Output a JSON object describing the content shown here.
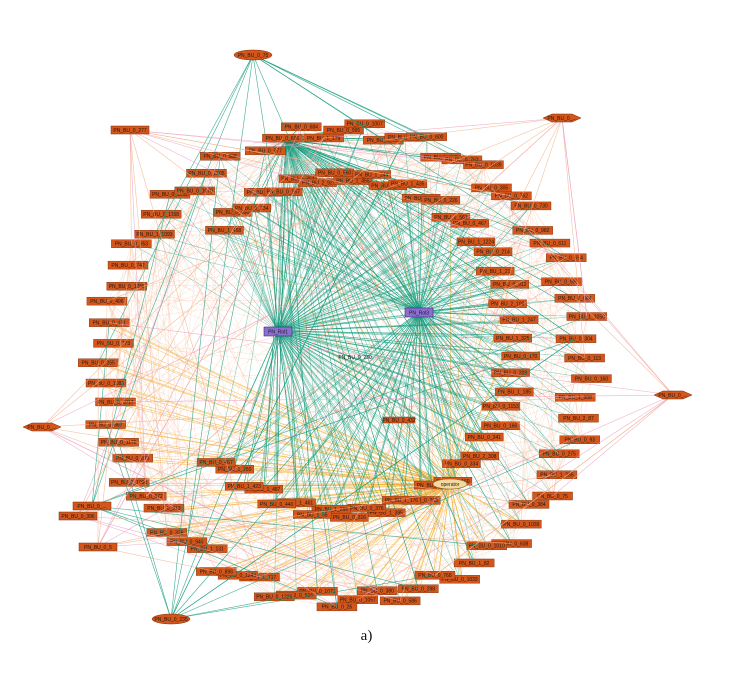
{
  "caption": "a)",
  "colors": {
    "node_fill": "#d4561a",
    "node_stroke": "#7a2d08",
    "hub_fill": "#8a6fd0",
    "edge_green": "#0f9a7a",
    "edge_orange": "#f2a91a",
    "edge_salmon": "#f3b08a",
    "edge_pink": "#ee9fc0"
  },
  "hubs": [
    {
      "label": "PN_Rol1",
      "color": "#8a6fd0"
    },
    {
      "label": "PN_Rol3",
      "color": "#8a6fd0"
    },
    {
      "label": "operator",
      "color": "#f3d9a0"
    }
  ],
  "center_labels": [
    "PN_BU_0_230",
    "PN_BU_0_432"
  ],
  "outer_nodes": [
    "PN_BU_0_75",
    "PN_BU_0_277",
    "PN_BU_0_...",
    "PN_BU_0_...",
    "PN_BU_0_...",
    "PN_BU_0_...",
    "PN_BU_0_396",
    "PN_BU_0_5",
    "PN_BU_0_235"
  ],
  "ring_nodes": [
    "PN_BU_0_977",
    "PN_BU_0_696",
    "PN_BU_0_684",
    "PN_BU_1_179",
    "PN_BU_0_995",
    "PN_BU_0_1007",
    "PN_BU_1_400",
    "PN_BU_0_349",
    "PN_BU_0_600",
    "PN_BU_1_430",
    "PN_BU_0_762",
    "PN_BU_0_1039",
    "PN_BU_0_305",
    "PN_BU_0_762",
    "PN_BU_0_730",
    "PN_BU_0_982",
    "PN_BU_0_611",
    "PN_BU_0_654",
    "PN_BU_0_980",
    "PN_BU_0_664",
    "PN_BU_1_1050",
    "PN_BU_0_304",
    "PN_BU_0_113",
    "PN_BU_0_160",
    "PN_BU_1_308",
    "PN_BU_2_87",
    "PN_BU_0_93",
    "PN_BU_0_275",
    "PN_BU_1_235",
    "PN_BU_0_75",
    "PN_BU_0_384",
    "PN_BU_0_1039",
    "PN_BU_0_608",
    "PN_BU_0_1010",
    "PN_BU_1_82",
    "PN_BU_0_1033",
    "PN_BU_0_768",
    "PN_BU_0_298",
    "PN_BU_0_586",
    "PN_BU_0_380",
    "PN_BU_0_1057",
    "PN_BU_0_26",
    "PN_BU_0_1071",
    "PN_BU_0_524",
    "PN_BU_0_1226",
    "PN_BU_1_717",
    "PN_BU_0_1243",
    "PN_BU_0_896",
    "PN_BU_1_131",
    "PN_BU_0_946",
    "PN_BU_0_326",
    "PN_BU_0_313",
    "PN_BU_0_672",
    "PN_BU_0_1090",
    "PN_BU_0_875",
    "PN_BU_0_1176",
    "PN_BU_0_867",
    "PN_BU_0_1017",
    "PN_BU_0_1083",
    "PN_BU_0_265",
    "PN_BU_0_773",
    "PN_BU_0_431",
    "PN_BU_0_496",
    "PN_BU_0_1258",
    "PN_BU_0_742",
    "PN_BU_0_953",
    "PN_BU_1_1093",
    "PN_BU_0_1158",
    "PN_BU_0_1011",
    "PN_BU_0_1070",
    "PN_BU_0_1205",
    "PN_BU_0_588"
  ],
  "inner_nodes": [
    "PN_BU_1_458",
    "PN_BU_0_356",
    "PN_BU_0_234",
    "PN_BU_0_122",
    "PN_BU_0_167",
    "PN_BU_1_364",
    "PN_BU_2_92",
    "PN_BU_0_560",
    "PN_BU_1_455",
    "PN_BU_1_244",
    "PN_BU_1_127",
    "PN_BU_1_435",
    "PN_BU_2_347",
    "PN_BU_0_226",
    "PN_BU_0_561",
    "PN_BU_0_467",
    "PN_BU_1_1224",
    "PN_BU_0_214",
    "PN_BU_1_21",
    "PN_BU_0_912",
    "PN_BU_2_109",
    "PN_BU_1_247",
    "PN_BU_1_325",
    "PN_BU_0_170",
    "PN_BU_0_209",
    "PN_BU_1_185",
    "PN_BU_0_1153",
    "PN_BU_0_166",
    "PN_BU_0_241",
    "PN_BU_2_308",
    "PN_BU_0_334",
    "PN_BU_0_160",
    "PN_BU_0_252",
    "PN_BU_0_263",
    "PN_BU_1_176",
    "PN_BU_1_395",
    "PN_BU_0_376",
    "PN_BU_0_316",
    "PN_BU_1_266",
    "PN_BU_1_55",
    "PN_BU_1_461",
    "PN_BU_0_440",
    "PN_BU_1_487",
    "PN_BU_1_423",
    "PN_BU_1_250",
    "PN_BU_0_467"
  ]
}
